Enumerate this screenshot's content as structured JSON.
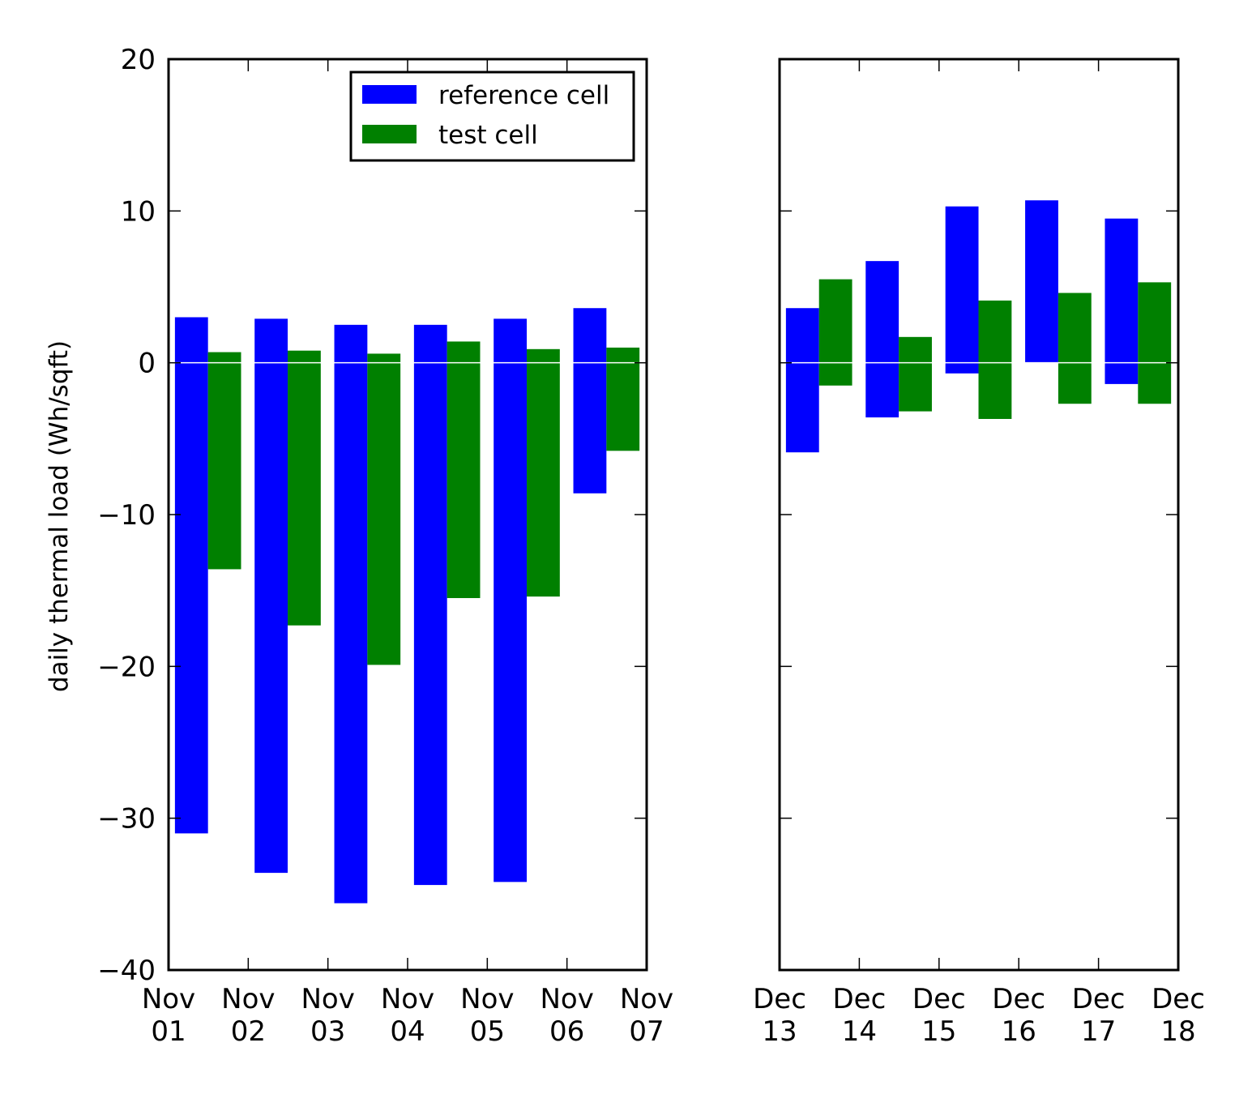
{
  "colors": {
    "reference": "#0000ff",
    "test": "#008000",
    "background": "#ffffff",
    "axis": "#000000",
    "zero_line": "#ffffff"
  },
  "chart_data": {
    "type": "bar",
    "ylabel": "daily thermal load (Wh/sqft)",
    "ylim": [
      -40,
      20
    ],
    "yticks": [
      20,
      10,
      0,
      -10,
      -20,
      -30,
      -40
    ],
    "ytick_labels": [
      "20",
      "10",
      "0",
      "−10",
      "−20",
      "−30",
      "−40"
    ],
    "grid": false,
    "legend_placement": "top-right",
    "series": [
      {
        "name": "reference cell"
      },
      {
        "name": "test cell"
      }
    ],
    "panels": [
      {
        "id": "november",
        "x_ticks": [
          [
            "Nov",
            "01"
          ],
          [
            "Nov",
            "02"
          ],
          [
            "Nov",
            "03"
          ],
          [
            "Nov",
            "04"
          ],
          [
            "Nov",
            "05"
          ],
          [
            "Nov",
            "06"
          ],
          [
            "Nov",
            "07"
          ]
        ],
        "days": [
          "Nov 01",
          "Nov 02",
          "Nov 03",
          "Nov 04",
          "Nov 05",
          "Nov 06"
        ],
        "bars": {
          "reference cell": [
            [
              -31.0,
              3.0
            ],
            [
              -33.6,
              2.9
            ],
            [
              -35.6,
              2.5
            ],
            [
              -34.4,
              2.5
            ],
            [
              -34.2,
              2.9
            ],
            [
              -8.6,
              3.6
            ]
          ],
          "test cell": [
            [
              -13.6,
              0.7
            ],
            [
              -17.3,
              0.8
            ],
            [
              -19.9,
              0.6
            ],
            [
              -15.5,
              1.4
            ],
            [
              -15.4,
              0.9
            ],
            [
              -5.8,
              1.0
            ]
          ]
        },
        "show_legend": true,
        "show_ylabel": true,
        "show_ytick_labels": true
      },
      {
        "id": "december",
        "x_ticks": [
          [
            "Dec",
            "13"
          ],
          [
            "Dec",
            "14"
          ],
          [
            "Dec",
            "15"
          ],
          [
            "Dec",
            "16"
          ],
          [
            "Dec",
            "17"
          ],
          [
            "Dec",
            "18"
          ]
        ],
        "days": [
          "Dec 13",
          "Dec 14",
          "Dec 15",
          "Dec 16",
          "Dec 17"
        ],
        "bars": {
          "reference cell": [
            [
              -5.9,
              3.6
            ],
            [
              -3.6,
              6.7
            ],
            [
              -0.7,
              10.3
            ],
            [
              0.0,
              10.7
            ],
            [
              -1.4,
              9.5
            ]
          ],
          "test cell": [
            [
              -1.5,
              5.5
            ],
            [
              -3.2,
              1.7
            ],
            [
              -3.7,
              4.1
            ],
            [
              -2.7,
              4.6
            ],
            [
              -2.7,
              5.3
            ]
          ]
        },
        "show_legend": false,
        "show_ylabel": false,
        "show_ytick_labels": false
      }
    ]
  }
}
